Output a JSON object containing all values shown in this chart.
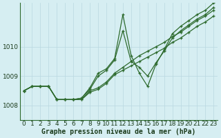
{
  "bg_color": "#d6eef2",
  "grid_color": "#b8d8e0",
  "line_color": "#2d6a2d",
  "marker_color": "#2d6a2d",
  "title": "Graphe pression niveau de la mer (hPa)",
  "yticks": [
    1008,
    1009,
    1010
  ],
  "ylim": [
    1007.5,
    1011.5
  ],
  "xlim": [
    -0.5,
    23.5
  ],
  "series": [
    [
      1008.5,
      1008.65,
      1008.65,
      1008.65,
      1008.2,
      1008.2,
      1008.2,
      1008.2,
      1008.45,
      1008.55,
      1008.75,
      1009.05,
      1009.2,
      1009.35,
      1009.5,
      1009.65,
      1009.8,
      1009.95,
      1010.15,
      1010.3,
      1010.5,
      1010.7,
      1010.85,
      1011.05
    ],
    [
      1008.5,
      1008.65,
      1008.65,
      1008.65,
      1008.2,
      1008.2,
      1008.2,
      1008.2,
      1008.5,
      1008.6,
      1008.8,
      1009.1,
      1009.3,
      1009.5,
      1009.7,
      1009.85,
      1010.0,
      1010.15,
      1010.35,
      1010.5,
      1010.7,
      1010.9,
      1011.05,
      1011.25
    ],
    [
      1008.5,
      1008.65,
      1008.65,
      1008.65,
      1008.2,
      1008.2,
      1008.2,
      1008.25,
      1008.55,
      1009.0,
      1009.2,
      1009.55,
      1010.55,
      1009.5,
      1009.3,
      1009.0,
      1009.45,
      1009.85,
      1010.3,
      1010.55,
      1010.75,
      1010.95,
      1011.1,
      1011.35
    ],
    [
      1008.5,
      1008.65,
      1008.65,
      1008.65,
      1008.2,
      1008.2,
      1008.2,
      1008.25,
      1008.6,
      1009.1,
      1009.25,
      1009.6,
      1011.1,
      1009.7,
      1009.1,
      1008.65,
      1009.4,
      1009.9,
      1010.45,
      1010.7,
      1010.9,
      1011.1,
      1011.25,
      1011.5
    ]
  ],
  "fontsize_ticks": 6.5,
  "fontsize_title": 7,
  "linewidth": 0.9,
  "markersize": 3.0
}
